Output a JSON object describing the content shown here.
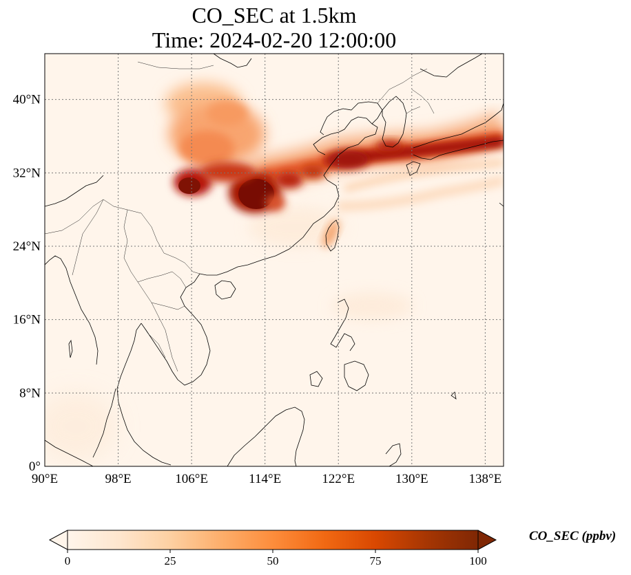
{
  "title": {
    "line1": "CO_SEC at 1.5km",
    "line2": "Time: 2024-02-20 12:00:00"
  },
  "map": {
    "lon_range": [
      90,
      140
    ],
    "lat_range": [
      0,
      45
    ],
    "lat_ticks": [
      {
        "value": 0,
        "label": "0°"
      },
      {
        "value": 8,
        "label": "8°N"
      },
      {
        "value": 16,
        "label": "16°N"
      },
      {
        "value": 24,
        "label": "24°N"
      },
      {
        "value": 32,
        "label": "32°N"
      },
      {
        "value": 40,
        "label": "40°N"
      }
    ],
    "lon_ticks": [
      {
        "value": 90,
        "label": "90°E"
      },
      {
        "value": 98,
        "label": "98°E"
      },
      {
        "value": 106,
        "label": "106°E"
      },
      {
        "value": 114,
        "label": "114°E"
      },
      {
        "value": 122,
        "label": "122°E"
      },
      {
        "value": 130,
        "label": "130°E"
      },
      {
        "value": 138,
        "label": "138°E"
      }
    ],
    "gridlines": "dotted",
    "background_color": "#fff5eb",
    "coastline_color": "#000000"
  },
  "colorbar": {
    "label": "CO_SEC (ppbv)",
    "colormap": "OrRd",
    "colors": [
      "#fff5eb",
      "#fee6ce",
      "#fdd0a2",
      "#fdae6b",
      "#fd8d3c",
      "#f16913",
      "#d94801",
      "#a63603",
      "#7f2704"
    ],
    "range": [
      0,
      100
    ],
    "extend": "both",
    "ticks": [
      {
        "value": 0,
        "label": "0"
      },
      {
        "value": 25,
        "label": "25"
      },
      {
        "value": 50,
        "label": "50"
      },
      {
        "value": 75,
        "label": "75"
      },
      {
        "value": 100,
        "label": "100"
      }
    ]
  }
}
